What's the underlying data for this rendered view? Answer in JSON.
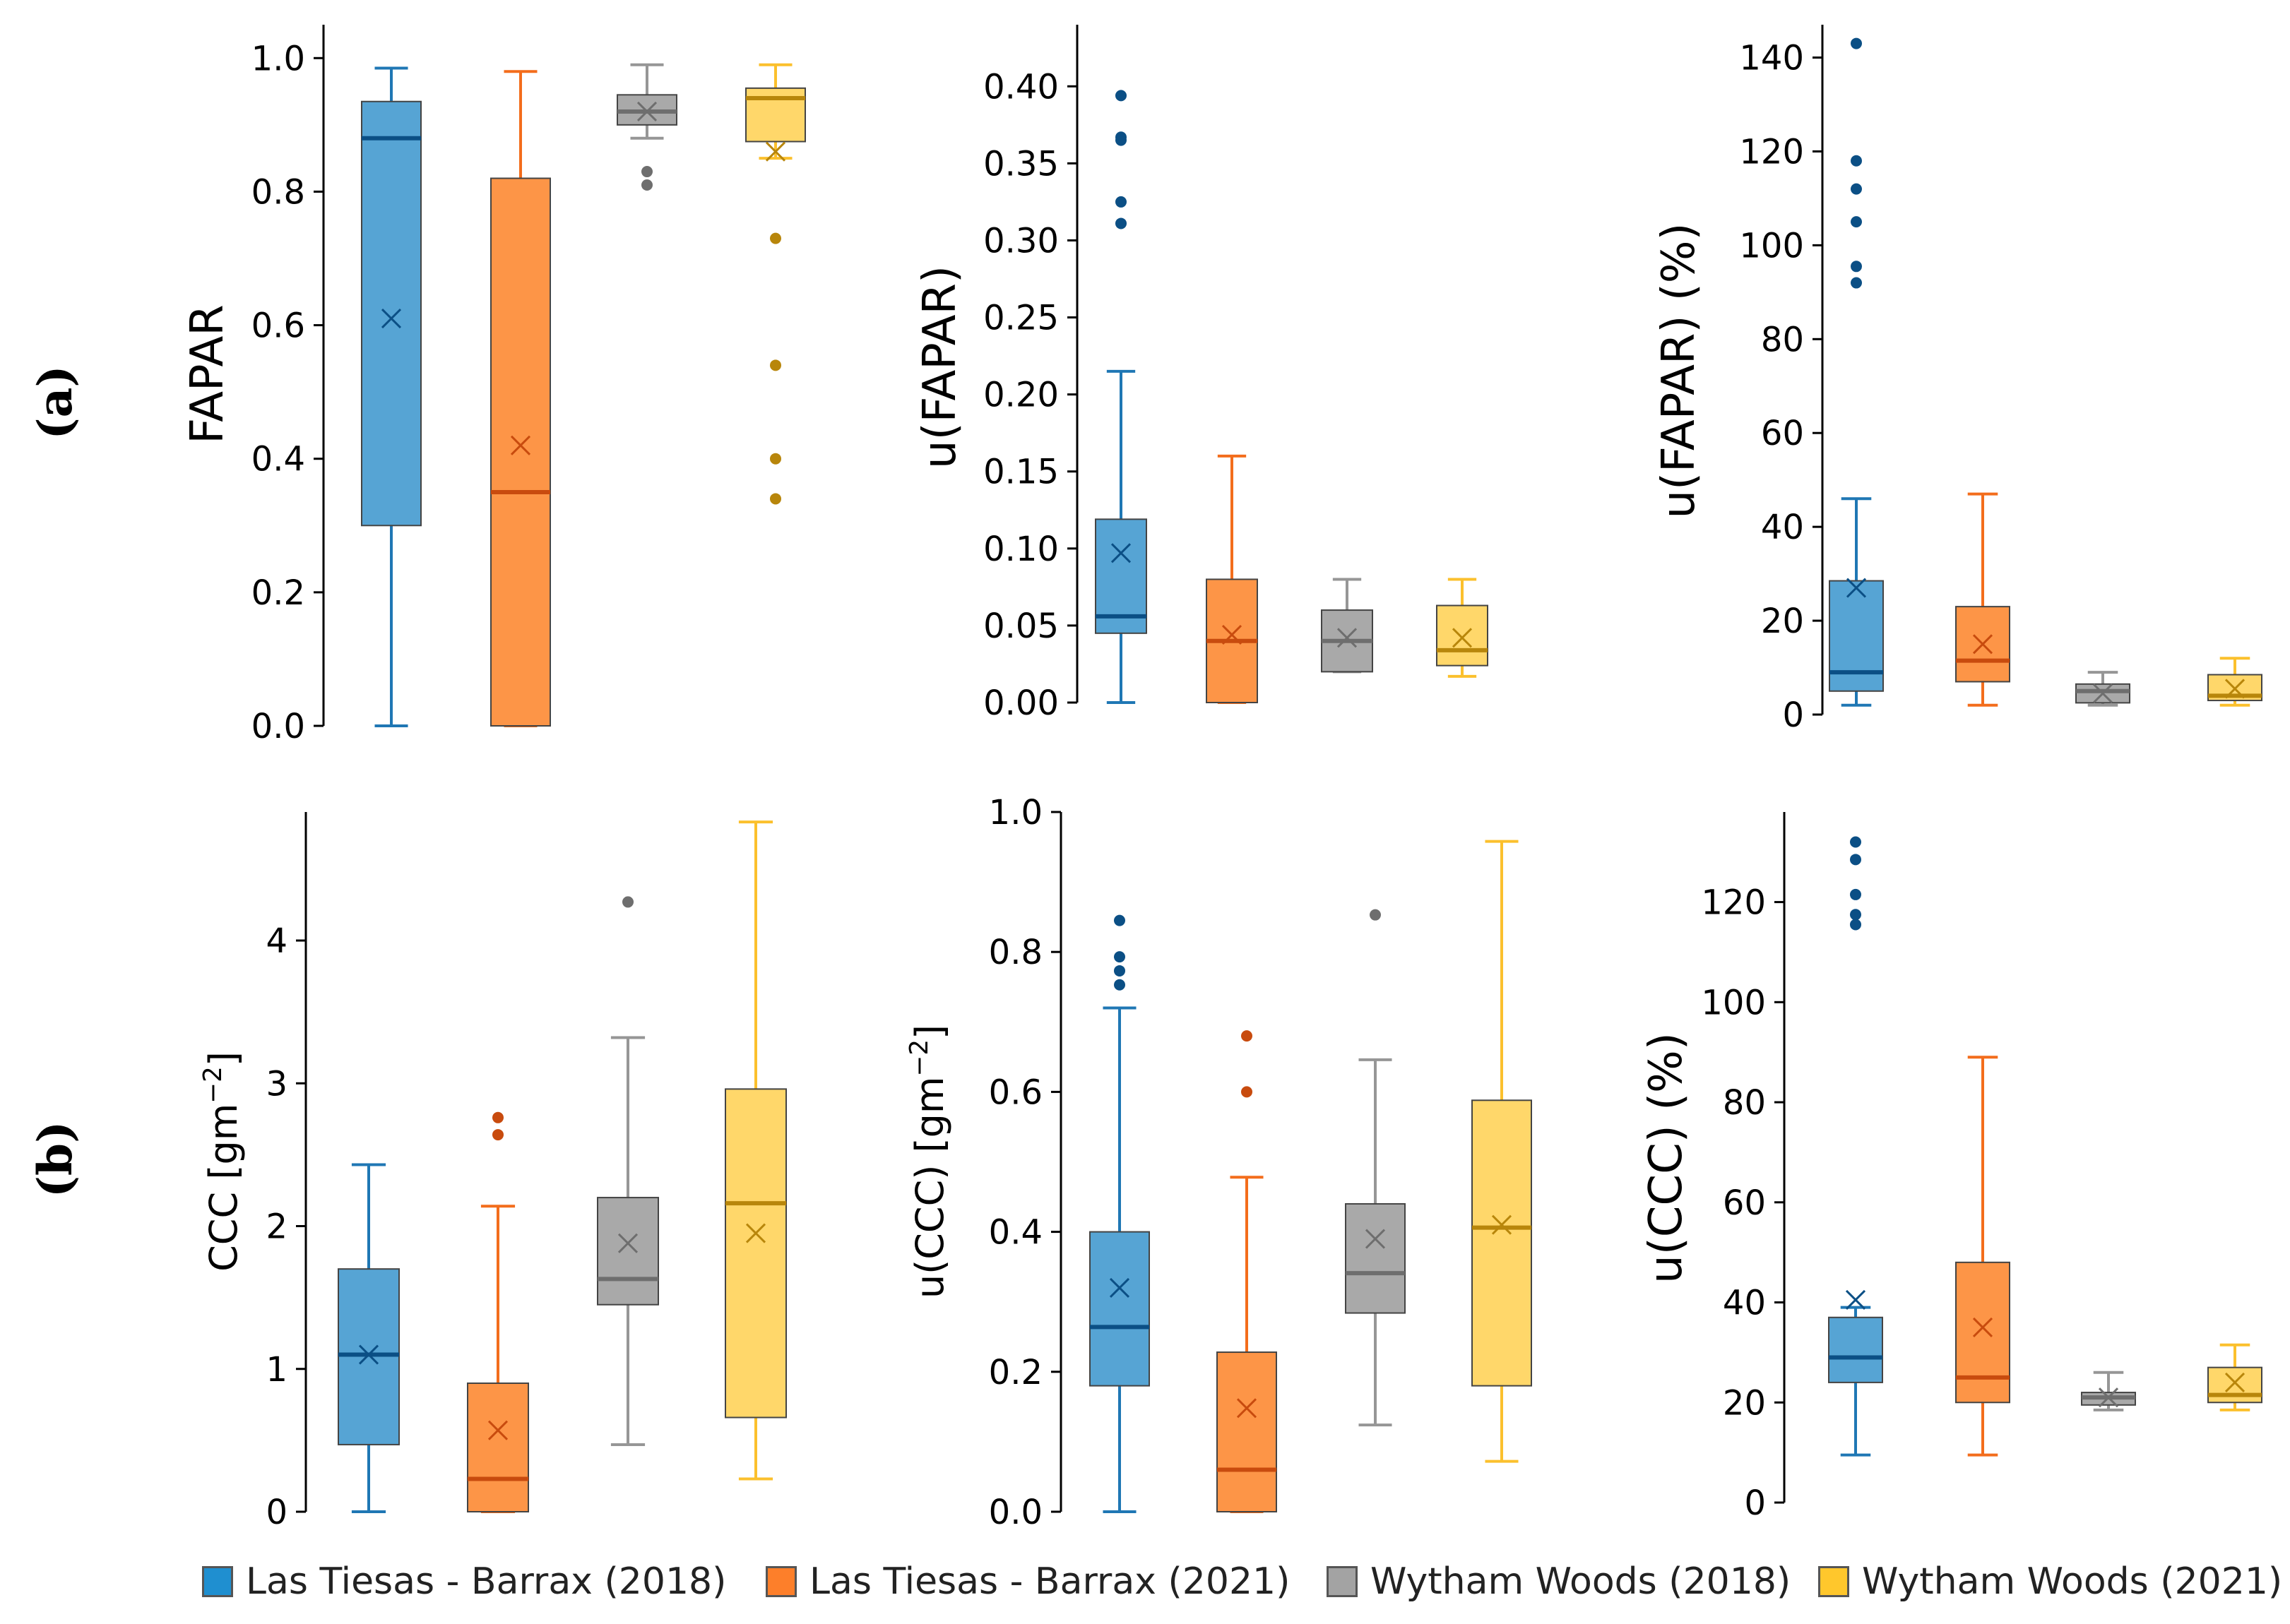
{
  "panel_labels": {
    "a": "(a)",
    "b": "(b)"
  },
  "colors": {
    "lt2018": {
      "fill": "#56a4d4",
      "line": "#1f77b4",
      "dark": "#0b4f85"
    },
    "lt2021": {
      "fill": "#fd9547",
      "line": "#f36d1c",
      "dark": "#c84b0e"
    },
    "ww2018": {
      "fill": "#a9a9a9",
      "line": "#969696",
      "dark": "#6e6e6e"
    },
    "ww2021": {
      "fill": "#ffd76a",
      "line": "#fbc02d",
      "dark": "#b8860b"
    }
  },
  "legend": [
    {
      "key": "lt2018",
      "label": "Las Tiesas - Barrax (2018)"
    },
    {
      "key": "lt2021",
      "label": "Las Tiesas - Barrax (2021)"
    },
    {
      "key": "ww2018",
      "label": "Wytham Woods (2018)"
    },
    {
      "key": "ww2021",
      "label": "Wytham Woods (2021)"
    }
  ],
  "chart_data": [
    {
      "type": "box",
      "panel": "a",
      "ylabel": "FAPAR",
      "ylim": [
        0,
        1.05
      ],
      "yticks": [
        0.0,
        0.2,
        0.4,
        0.6,
        0.8,
        1.0
      ],
      "yticklabels": [
        "0.0",
        "0.2",
        "0.4",
        "0.6",
        "0.8",
        "1.0"
      ],
      "series": [
        {
          "name": "Las Tiesas - Barrax (2018)",
          "key": "lt2018",
          "whislo": 0.0,
          "q1": 0.3,
          "med": 0.88,
          "q3": 0.935,
          "whishi": 0.985,
          "mean": 0.61,
          "fliers": []
        },
        {
          "name": "Las Tiesas - Barrax (2021)",
          "key": "lt2021",
          "whislo": 0.0,
          "q1": 0.0,
          "med": 0.35,
          "q3": 0.82,
          "whishi": 0.98,
          "mean": 0.42,
          "fliers": []
        },
        {
          "name": "Wytham Woods (2018)",
          "key": "ww2018",
          "whislo": 0.88,
          "q1": 0.9,
          "med": 0.92,
          "q3": 0.945,
          "whishi": 0.99,
          "mean": 0.92,
          "fliers": [
            0.83,
            0.81
          ]
        },
        {
          "name": "Wytham Woods (2021)",
          "key": "ww2021",
          "whislo": 0.85,
          "q1": 0.875,
          "med": 0.94,
          "q3": 0.955,
          "whishi": 0.99,
          "mean": 0.86,
          "fliers": [
            0.73,
            0.54,
            0.4,
            0.34
          ]
        }
      ]
    },
    {
      "type": "box",
      "panel": "a",
      "ylabel": "u(FAPAR)",
      "ylim": [
        0,
        0.44
      ],
      "yticks": [
        0.0,
        0.05,
        0.1,
        0.15,
        0.2,
        0.25,
        0.3,
        0.35,
        0.4
      ],
      "yticklabels": [
        "0.00",
        "0.05",
        "0.10",
        "0.15",
        "0.20",
        "0.25",
        "0.30",
        "0.35",
        "0.40"
      ],
      "series": [
        {
          "name": "Las Tiesas - Barrax (2018)",
          "key": "lt2018",
          "whislo": 0.0,
          "q1": 0.045,
          "med": 0.056,
          "q3": 0.119,
          "whishi": 0.215,
          "mean": 0.097,
          "fliers": [
            0.394,
            0.367,
            0.365,
            0.325,
            0.311
          ]
        },
        {
          "name": "Las Tiesas - Barrax (2021)",
          "key": "lt2021",
          "whislo": 0.0,
          "q1": 0.0,
          "med": 0.04,
          "q3": 0.08,
          "whishi": 0.16,
          "mean": 0.044,
          "fliers": []
        },
        {
          "name": "Wytham Woods (2018)",
          "key": "ww2018",
          "whislo": 0.02,
          "q1": 0.02,
          "med": 0.04,
          "q3": 0.06,
          "whishi": 0.08,
          "mean": 0.042,
          "fliers": []
        },
        {
          "name": "Wytham Woods (2021)",
          "key": "ww2021",
          "whislo": 0.017,
          "q1": 0.024,
          "med": 0.034,
          "q3": 0.063,
          "whishi": 0.08,
          "mean": 0.042,
          "fliers": []
        }
      ]
    },
    {
      "type": "box",
      "panel": "a",
      "ylabel": "u(FAPAR) (%)",
      "ylim": [
        0,
        147
      ],
      "yticks": [
        0,
        20,
        40,
        60,
        80,
        100,
        120,
        140
      ],
      "yticklabels": [
        "0",
        "20",
        "40",
        "60",
        "80",
        "100",
        "120",
        "140"
      ],
      "series": [
        {
          "name": "Las Tiesas - Barrax (2018)",
          "key": "lt2018",
          "whislo": 2,
          "q1": 5,
          "med": 9,
          "q3": 28.5,
          "whishi": 46,
          "mean": 27,
          "fliers": [
            143,
            118,
            112,
            105,
            95.5,
            92
          ]
        },
        {
          "name": "Las Tiesas - Barrax (2021)",
          "key": "lt2021",
          "whislo": 2,
          "q1": 7,
          "med": 11.5,
          "q3": 23,
          "whishi": 47,
          "mean": 15,
          "fliers": []
        },
        {
          "name": "Wytham Woods (2018)",
          "key": "ww2018",
          "whislo": 2,
          "q1": 2.5,
          "med": 5,
          "q3": 6.5,
          "whishi": 9,
          "mean": 4.5,
          "fliers": []
        },
        {
          "name": "Wytham Woods (2021)",
          "key": "ww2021",
          "whislo": 2,
          "q1": 3,
          "med": 4,
          "q3": 8.5,
          "whishi": 12,
          "mean": 5.5,
          "fliers": []
        }
      ]
    },
    {
      "type": "box",
      "panel": "b",
      "ylabel": "CCC [gm$^{-2}$]",
      "ylabel_main": "CCC [gm",
      "ylabel_sup": "−2",
      "ylabel_end": "]",
      "ylim": [
        0,
        4.9
      ],
      "yticks": [
        0,
        1,
        2,
        3,
        4
      ],
      "yticklabels": [
        "0",
        "1",
        "2",
        "3",
        "4"
      ],
      "series": [
        {
          "name": "Las Tiesas - Barrax (2018)",
          "key": "lt2018",
          "whislo": 0.0,
          "q1": 0.47,
          "med": 1.1,
          "q3": 1.7,
          "whishi": 2.43,
          "mean": 1.1,
          "fliers": []
        },
        {
          "name": "Las Tiesas - Barrax (2021)",
          "key": "lt2021",
          "whislo": 0.0,
          "q1": 0.0,
          "med": 0.23,
          "q3": 0.9,
          "whishi": 2.14,
          "mean": 0.57,
          "fliers": [
            2.76,
            2.64
          ]
        },
        {
          "name": "Wytham Woods (2018)",
          "key": "ww2018",
          "whislo": 0.47,
          "q1": 1.45,
          "med": 1.63,
          "q3": 2.2,
          "whishi": 3.32,
          "mean": 1.88,
          "fliers": [
            4.27
          ]
        },
        {
          "name": "Wytham Woods (2021)",
          "key": "ww2021",
          "whislo": 0.23,
          "q1": 0.66,
          "med": 2.16,
          "q3": 2.96,
          "whishi": 4.83,
          "mean": 1.95,
          "fliers": []
        }
      ]
    },
    {
      "type": "box",
      "panel": "b",
      "ylabel": "u(CCC) [gm$^{-2}$]",
      "ylabel_main": "u(CCC) [gm",
      "ylabel_sup": "−2",
      "ylabel_end": "]",
      "ylim": [
        0,
        1.0
      ],
      "yticks": [
        0.0,
        0.2,
        0.4,
        0.6,
        0.8,
        1.0
      ],
      "yticklabels": [
        "0.0",
        "0.2",
        "0.4",
        "0.6",
        "0.8",
        "1.0"
      ],
      "series": [
        {
          "name": "Las Tiesas - Barrax (2018)",
          "key": "lt2018",
          "whislo": 0.0,
          "q1": 0.18,
          "med": 0.264,
          "q3": 0.4,
          "whishi": 0.72,
          "mean": 0.32,
          "fliers": [
            0.845,
            0.793,
            0.773,
            0.753
          ]
        },
        {
          "name": "Las Tiesas - Barrax (2021)",
          "key": "lt2021",
          "whislo": 0.0,
          "q1": 0.0,
          "med": 0.06,
          "q3": 0.228,
          "whishi": 0.478,
          "mean": 0.148,
          "fliers": [
            0.68,
            0.6
          ]
        },
        {
          "name": "Wytham Woods (2018)",
          "key": "ww2018",
          "whislo": 0.124,
          "q1": 0.284,
          "med": 0.341,
          "q3": 0.44,
          "whishi": 0.646,
          "mean": 0.39,
          "fliers": [
            0.853
          ]
        },
        {
          "name": "Wytham Woods (2021)",
          "key": "ww2021",
          "whislo": 0.072,
          "q1": 0.18,
          "med": 0.406,
          "q3": 0.588,
          "whishi": 0.958,
          "mean": 0.41,
          "fliers": []
        }
      ]
    },
    {
      "type": "box",
      "panel": "b",
      "ylabel": "u(CCC) (%)",
      "ylim": [
        0,
        138
      ],
      "yticks": [
        0,
        20,
        40,
        60,
        80,
        100,
        120
      ],
      "yticklabels": [
        "0",
        "20",
        "40",
        "60",
        "80",
        "100",
        "120"
      ],
      "series": [
        {
          "name": "Las Tiesas - Barrax (2018)",
          "key": "lt2018",
          "whislo": 9.5,
          "q1": 24,
          "med": 29,
          "q3": 37,
          "whishi": 39,
          "mean": 40.5,
          "fliers": [
            132,
            128.5,
            121.5,
            117.5,
            115.5
          ]
        },
        {
          "name": "Las Tiesas - Barrax (2021)",
          "key": "lt2021",
          "whislo": 9.5,
          "q1": 20,
          "med": 25,
          "q3": 48,
          "whishi": 89,
          "mean": 35,
          "fliers": []
        },
        {
          "name": "Wytham Woods (2018)",
          "key": "ww2018",
          "whislo": 18.5,
          "q1": 19.5,
          "med": 21,
          "q3": 22,
          "whishi": 26,
          "mean": 21,
          "fliers": []
        },
        {
          "name": "Wytham Woods (2021)",
          "key": "ww2021",
          "whislo": 18.5,
          "q1": 20,
          "med": 21.5,
          "q3": 27,
          "whishi": 31.5,
          "mean": 24,
          "fliers": []
        }
      ]
    }
  ]
}
